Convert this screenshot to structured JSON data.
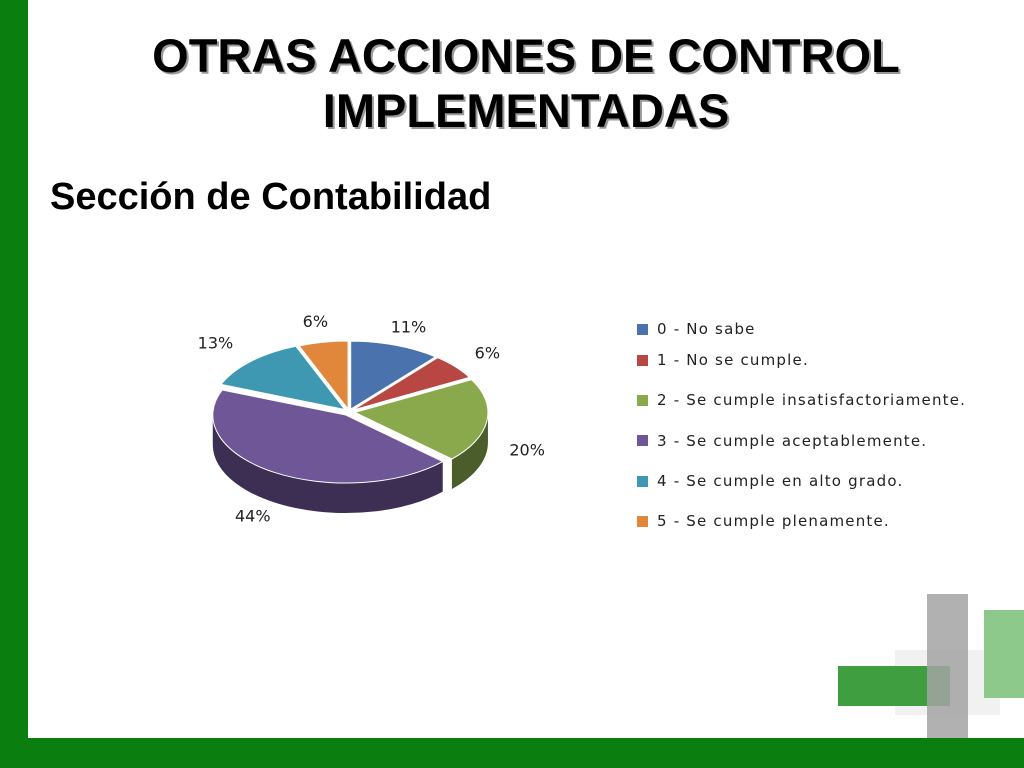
{
  "slide": {
    "title_line1": "OTRAS ACCIONES DE  CONTROL",
    "title_line2": "IMPLEMENTADAS",
    "subtitle": "Sección de Contabilidad"
  },
  "theme": {
    "frame_color": "#0a7f10"
  },
  "chart_data": {
    "type": "pie",
    "title": "",
    "style": "3d-exploded",
    "legend_position": "right",
    "categories": [
      "0 - No sabe",
      "1 - No se cumple.",
      "2 - Se cumple insatisfactoriamente.",
      "3 - Se cumple aceptablemente.",
      "4 - Se cumple en alto grado.",
      "5 - Se cumple plenamente."
    ],
    "values": [
      11,
      6,
      20,
      44,
      13,
      6
    ],
    "labels": [
      "11%",
      "6%",
      "20%",
      "44%",
      "13%",
      "6%"
    ],
    "colors": [
      "#4a72ad",
      "#b84643",
      "#89a94c",
      "#6f5696",
      "#3e98b1",
      "#e0873b"
    ]
  }
}
